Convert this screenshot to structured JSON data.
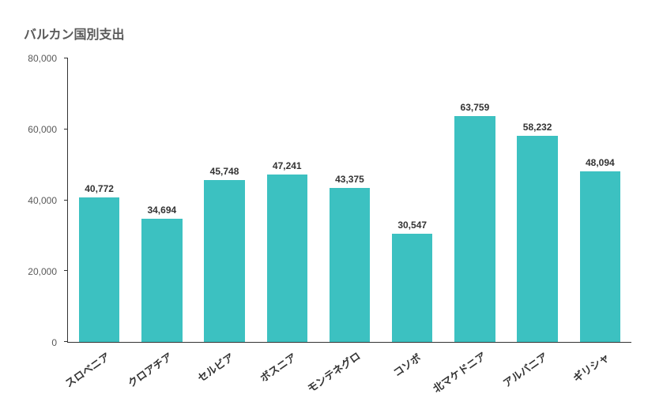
{
  "chart": {
    "type": "bar",
    "title": "バルカン国別支出",
    "title_fontsize": 16,
    "title_color": "#595959",
    "background_color": "#ffffff",
    "bar_color": "#3cc1c1",
    "bar_width": 0.65,
    "axis_color": "#333333",
    "tick_label_color": "#595959",
    "tick_label_fontsize": 12,
    "x_label_fontsize": 13,
    "x_label_rotation_deg": -35,
    "value_label_fontsize": 12,
    "value_label_color": "#333333",
    "ylim": [
      0,
      80000
    ],
    "ytick_step": 20000,
    "yticks": [
      {
        "value": 0,
        "label": "0"
      },
      {
        "value": 20000,
        "label": "20,000"
      },
      {
        "value": 40000,
        "label": "40,000"
      },
      {
        "value": 60000,
        "label": "60,000"
      },
      {
        "value": 80000,
        "label": "80,000"
      }
    ],
    "categories": [
      "スロベニア",
      "クロアチア",
      "セルビア",
      "ボスニア",
      "モンテネグロ",
      "コソボ",
      "北マケドニア",
      "アルバニア",
      "ギリシャ"
    ],
    "values": [
      40772,
      34694,
      45748,
      47241,
      43375,
      30547,
      63759,
      58232,
      48094
    ],
    "value_labels": [
      "40,772",
      "34,694",
      "45,748",
      "47,241",
      "43,375",
      "30,547",
      "63,759",
      "58,232",
      "48,094"
    ]
  }
}
